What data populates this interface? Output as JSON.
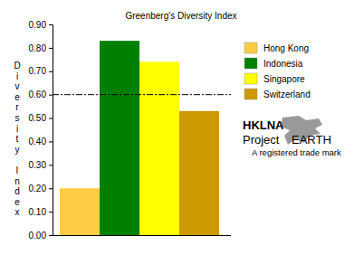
{
  "chart_data": {
    "type": "bar",
    "title": "Greenberg's Diversity Index",
    "y_label": "Diversity Index",
    "categories": [
      "Hong Kong",
      "Indonesia",
      "Singapore",
      "Switzerland"
    ],
    "values": [
      0.2,
      0.83,
      0.74,
      0.53
    ],
    "colors": [
      "#ffcc44",
      "#008000",
      "#ffff00",
      "#cc9900"
    ],
    "ylim": [
      0,
      0.9
    ],
    "yticks": [
      {
        "value": 0,
        "label": "0.00"
      },
      {
        "value": 0.1,
        "label": "0.10"
      },
      {
        "value": 0.2,
        "label": "0.20"
      },
      {
        "value": 0.3,
        "label": "0.30"
      },
      {
        "value": 0.4,
        "label": "0.40"
      },
      {
        "value": 0.5,
        "label": "0.50"
      },
      {
        "value": 0.6,
        "label": "0.60"
      },
      {
        "value": 0.7,
        "label": "0.70"
      },
      {
        "value": 0.8,
        "label": "0.80"
      },
      {
        "value": 0.9,
        "label": "0.90"
      }
    ],
    "hlines": [
      0.6
    ],
    "legend": "right",
    "tick_labels": "y",
    "annotations": [
      "HKLNA",
      "Project",
      "EARTH",
      "A registered trade mark"
    ]
  }
}
